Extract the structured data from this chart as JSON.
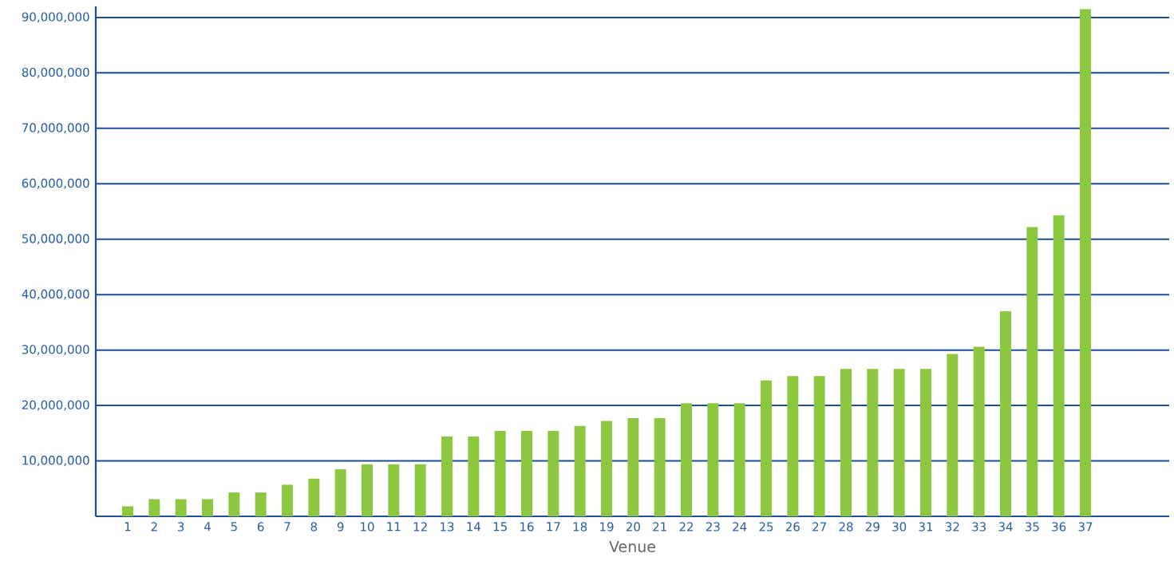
{
  "chart_data": {
    "type": "bar",
    "xlabel": "Venue",
    "categories": [
      "1",
      "2",
      "3",
      "4",
      "5",
      "6",
      "7",
      "8",
      "9",
      "10",
      "11",
      "12",
      "13",
      "14",
      "15",
      "16",
      "17",
      "18",
      "19",
      "20",
      "21",
      "22",
      "23",
      "24",
      "25",
      "26",
      "27",
      "28",
      "29",
      "30",
      "31",
      "32",
      "33",
      "34",
      "35",
      "36",
      "37"
    ],
    "values": [
      1800000,
      3100000,
      3100000,
      3100000,
      4300000,
      4300000,
      5700000,
      6800000,
      8500000,
      9400000,
      9400000,
      9400000,
      14400000,
      14400000,
      15400000,
      15400000,
      15400000,
      16300000,
      17200000,
      17700000,
      17700000,
      20400000,
      20400000,
      20400000,
      24500000,
      25300000,
      25300000,
      26600000,
      26600000,
      26600000,
      26600000,
      29300000,
      30600000,
      37000000,
      52200000,
      54300000,
      91500000
    ],
    "color": "#8dc63f",
    "ylim": [
      0,
      92000000
    ],
    "yticks": [
      {
        "value": 10000000,
        "label": "10,000,000"
      },
      {
        "value": 20000000,
        "label": "20,000,000"
      },
      {
        "value": 30000000,
        "label": "30,000,000"
      },
      {
        "value": 40000000,
        "label": "40,000,000"
      },
      {
        "value": 50000000,
        "label": "50,000,000"
      },
      {
        "value": 60000000,
        "label": "60,000,000"
      },
      {
        "value": 70000000,
        "label": "70,000,000"
      },
      {
        "value": 80000000,
        "label": "80,000,000"
      },
      {
        "value": 90000000,
        "label": "90,000,000"
      }
    ],
    "grid": "y"
  }
}
